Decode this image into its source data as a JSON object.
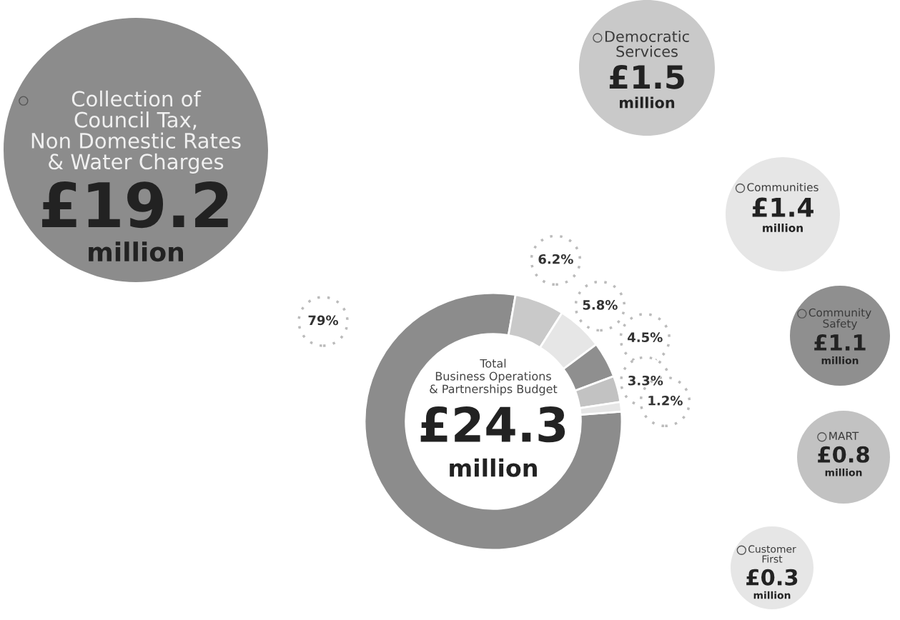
{
  "chart_data": {
    "type": "donut",
    "title": "Total\nBusiness Operations\n& Partnerships Budget",
    "categories": [
      "Collection of\nCouncil Tax,\nNon Domestic Rates\n& Water Charges",
      "Democratic\nServices",
      "Communities",
      "Community\nSafety",
      "MART",
      "Customer\nFirst"
    ],
    "values": [
      79,
      6.2,
      5.8,
      4.5,
      3.3,
      1.2
    ],
    "value_labels": [
      "79%",
      "6.2%",
      "5.8%",
      "4.5%",
      "3.3%",
      "1.2%"
    ],
    "colors": [
      "#8c8c8c",
      "#c9c9c9",
      "#e6e6e6",
      "#8f8f8f",
      "#c2c2c2",
      "#e6e6e6"
    ],
    "annotations": [
      "£19.2\nmillion",
      "£1.5\nmillion",
      "£1.4\nmillion",
      "£1.1\nmillion",
      "£0.8\nmillion",
      "£0.3\nmillion",
      "£24.3\nmillion"
    ],
    "legend": "top"
  }
}
